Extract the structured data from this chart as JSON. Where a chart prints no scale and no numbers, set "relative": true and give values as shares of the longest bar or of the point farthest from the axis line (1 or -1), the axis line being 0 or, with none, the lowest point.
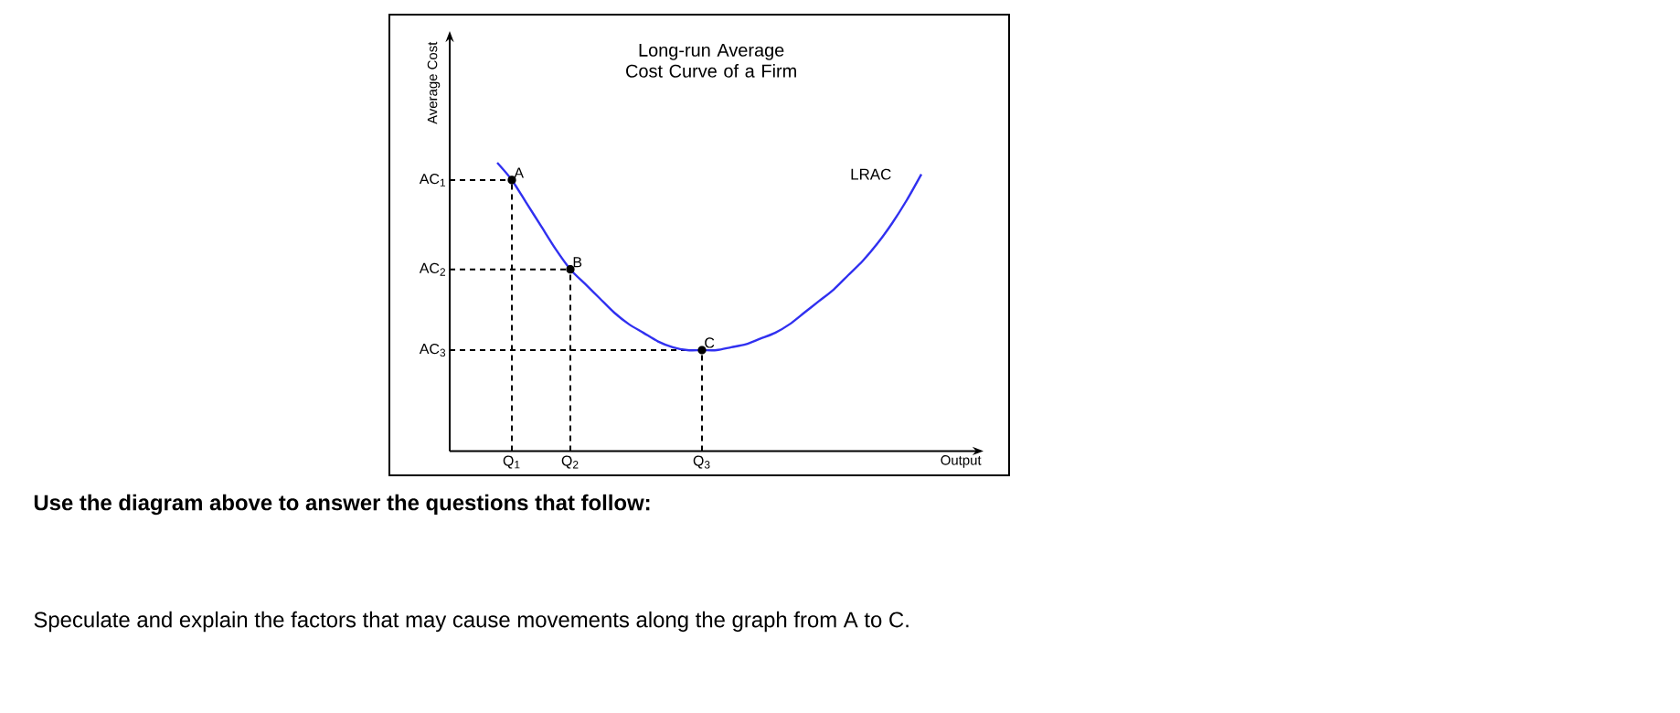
{
  "chart_data": {
    "type": "line",
    "title": "Long-run Average Cost Curve of a Firm",
    "xlabel": "Output",
    "ylabel": "Average Cost",
    "relative": true,
    "categories": [
      null,
      "Q$_{1}$",
      null,
      null,
      null,
      "Q$_{2}$",
      null,
      null,
      null,
      null,
      null,
      null,
      null,
      null,
      "Q$_{3}$",
      null,
      null,
      null,
      null,
      null,
      null,
      null,
      null,
      null,
      null,
      null,
      null,
      null,
      null,
      null
    ],
    "series": [
      {
        "name": "LRAC",
        "color": "#3030f0",
        "values": [
          1.0,
          0.94,
          0.86,
          0.78,
          0.7,
          0.63,
          0.58,
          0.53,
          0.48,
          0.44,
          0.41,
          0.38,
          0.36,
          0.35,
          0.35,
          0.35,
          0.36,
          0.37,
          0.39,
          0.41,
          0.44,
          0.48,
          0.52,
          0.56,
          0.61,
          0.66,
          0.72,
          0.79,
          0.87,
          0.96
        ]
      }
    ],
    "ref_lines": [
      {
        "axis": "y",
        "value": 0.94,
        "label": "AC$_{1}$",
        "line_style": "dashed"
      },
      {
        "axis": "y",
        "value": 0.63,
        "label": "AC$_{2}$",
        "line_style": "dashed"
      },
      {
        "axis": "y",
        "value": 0.35,
        "label": "AC$_{3}$",
        "line_style": "dashed"
      },
      {
        "axis": "x",
        "value": "Q$_{1}$",
        "line_style": "dashed"
      },
      {
        "axis": "x",
        "value": "Q$_{2}$",
        "line_style": "dashed"
      },
      {
        "axis": "x",
        "value": "Q$_{3}$",
        "line_style": "dashed"
      }
    ],
    "annotations": [
      {
        "text": "A",
        "x": "Q$_{1}$",
        "y": 0.94
      },
      {
        "text": "B",
        "x": "Q$_{2}$",
        "y": 0.63
      },
      {
        "text": "C",
        "x": "Q$_{3}$",
        "y": 0.35
      },
      "Use the diagram above to answer the questions that follow:",
      "Speculate and explain the factors that may cause movements along the graph from A to C."
    ]
  }
}
